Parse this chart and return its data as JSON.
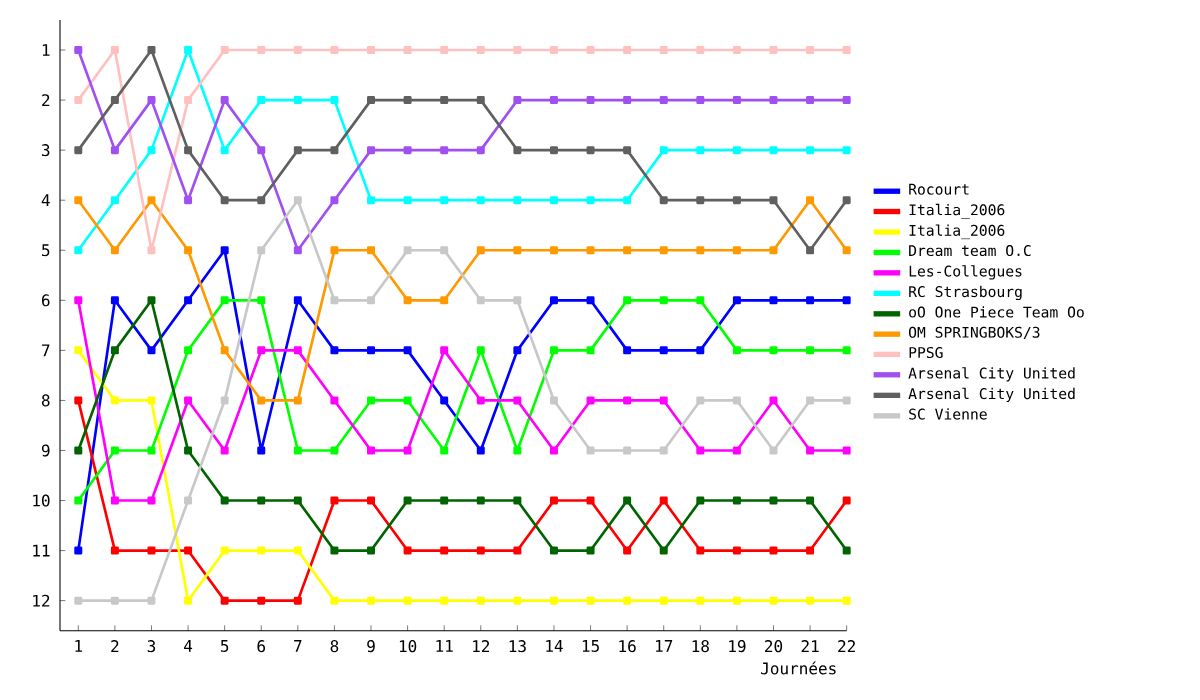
{
  "chart_data": {
    "type": "line",
    "xlabel": "Journées",
    "xlim": [
      0.5,
      22
    ],
    "ylim": [
      12.6,
      0.4
    ],
    "xticks": [
      1,
      2,
      3,
      4,
      5,
      6,
      7,
      8,
      9,
      10,
      11,
      12,
      13,
      14,
      15,
      16,
      17,
      18,
      19,
      20,
      21,
      22
    ],
    "yticks": [
      1,
      2,
      3,
      4,
      5,
      6,
      7,
      8,
      9,
      10,
      11,
      12
    ],
    "x": [
      1,
      2,
      3,
      4,
      5,
      6,
      7,
      8,
      9,
      10,
      11,
      12,
      13,
      14,
      15,
      16,
      17,
      18,
      19,
      20,
      21,
      22
    ],
    "marker": "square",
    "line_style": "solid",
    "legend": "right",
    "series": [
      {
        "name": "Rocourt",
        "color": "#0000ff",
        "values": [
          11,
          6,
          7,
          6,
          5,
          9,
          6,
          7,
          7,
          7,
          8,
          9,
          7,
          6,
          6,
          7,
          7,
          7,
          6,
          6,
          6,
          6
        ]
      },
      {
        "name": "Italia_2006",
        "color": "#ff0000",
        "values": [
          8,
          11,
          11,
          11,
          12,
          12,
          12,
          10,
          10,
          11,
          11,
          11,
          11,
          10,
          10,
          11,
          10,
          11,
          11,
          11,
          11,
          10
        ]
      },
      {
        "name": "Italia_2006",
        "color": "#ffff00",
        "values": [
          7,
          8,
          8,
          12,
          11,
          11,
          11,
          12,
          12,
          12,
          12,
          12,
          12,
          12,
          12,
          12,
          12,
          12,
          12,
          12,
          12,
          12
        ]
      },
      {
        "name": "Dream team O.C",
        "color": "#00ff00",
        "values": [
          10,
          9,
          9,
          7,
          6,
          6,
          9,
          9,
          8,
          8,
          9,
          7,
          9,
          7,
          7,
          6,
          6,
          6,
          7,
          7,
          7,
          7
        ]
      },
      {
        "name": "Les-Collegues",
        "color": "#ff00ff",
        "values": [
          6,
          10,
          10,
          8,
          9,
          7,
          7,
          8,
          9,
          9,
          7,
          8,
          8,
          9,
          8,
          8,
          8,
          9,
          9,
          8,
          9,
          9
        ]
      },
      {
        "name": "RC Strasbourg",
        "color": "#00ffff",
        "values": [
          5,
          4,
          3,
          1,
          3,
          2,
          2,
          2,
          4,
          4,
          4,
          4,
          4,
          4,
          4,
          4,
          3,
          3,
          3,
          3,
          3,
          3
        ]
      },
      {
        "name": "oO One Piece Team Oo",
        "color": "#006400",
        "values": [
          9,
          7,
          6,
          9,
          10,
          10,
          10,
          11,
          11,
          10,
          10,
          10,
          10,
          11,
          11,
          10,
          11,
          10,
          10,
          10,
          10,
          11
        ]
      },
      {
        "name": "OM SPRINGBOKS/3",
        "color": "#ff9900",
        "values": [
          4,
          5,
          4,
          5,
          7,
          8,
          8,
          5,
          5,
          6,
          6,
          5,
          5,
          5,
          5,
          5,
          5,
          5,
          5,
          5,
          4,
          5
        ]
      },
      {
        "name": "PPSG",
        "color": "#ffc0c0",
        "values": [
          2,
          1,
          5,
          2,
          1,
          1,
          1,
          1,
          1,
          1,
          1,
          1,
          1,
          1,
          1,
          1,
          1,
          1,
          1,
          1,
          1,
          1
        ]
      },
      {
        "name": "Arsenal City United",
        "color": "#a050f0",
        "values": [
          1,
          3,
          2,
          4,
          2,
          3,
          5,
          4,
          3,
          3,
          3,
          3,
          2,
          2,
          2,
          2,
          2,
          2,
          2,
          2,
          2,
          2
        ]
      },
      {
        "name": "Arsenal City United",
        "color": "#606060",
        "values": [
          3,
          2,
          1,
          3,
          4,
          4,
          3,
          3,
          2,
          2,
          2,
          2,
          3,
          3,
          3,
          3,
          4,
          4,
          4,
          4,
          5,
          4
        ]
      },
      {
        "name": "SC Vienne",
        "color": "#c8c8c8",
        "values": [
          12,
          12,
          12,
          10,
          8,
          5,
          4,
          6,
          6,
          5,
          5,
          6,
          6,
          8,
          9,
          9,
          9,
          8,
          8,
          9,
          8,
          8
        ]
      }
    ]
  }
}
